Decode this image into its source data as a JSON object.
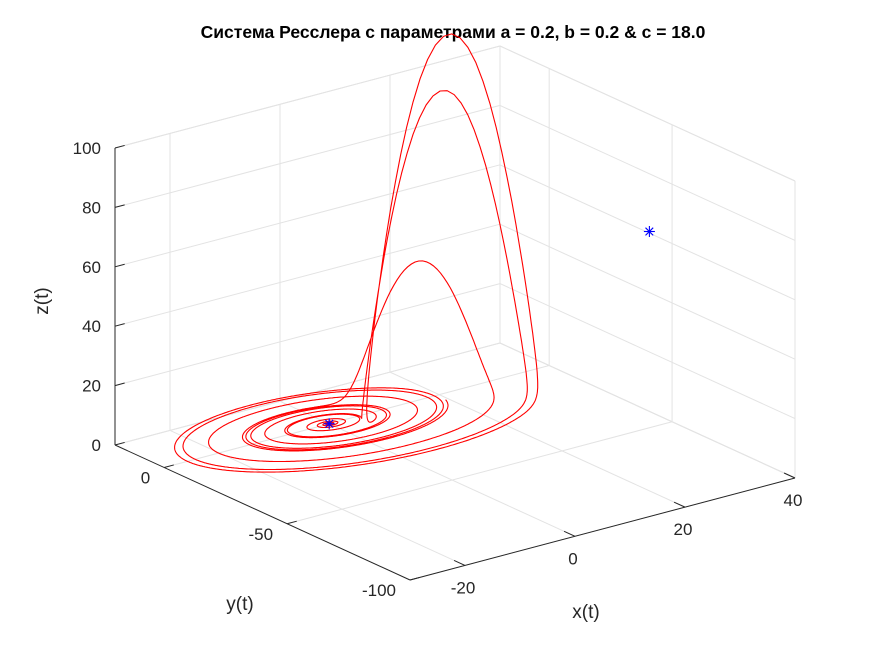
{
  "chart_data": {
    "type": "line3d",
    "title": "Система Ресслера с параметрами a = 0.2, b = 0.2 & c = 18.0",
    "xlabel": "x(t)",
    "ylabel": "y(t)",
    "zlabel": "z(t)",
    "xlim": [
      -30,
      40
    ],
    "ylim": [
      -100,
      20
    ],
    "zlim": [
      0,
      100
    ],
    "x_ticks": [
      -20,
      0,
      20,
      40
    ],
    "y_ticks": [
      -100,
      -50,
      0
    ],
    "z_ticks": [
      0,
      20,
      40,
      60,
      80,
      100
    ],
    "grid": true,
    "trajectory_color": "#ff0000",
    "marker_color": "#0000ff",
    "marker_symbol": "*",
    "fixed_points": [
      {
        "x": 0.0022,
        "y": -0.011,
        "z": 0.011
      },
      {
        "x": 17.998,
        "y": -89.989,
        "z": 89.989
      }
    ]
  }
}
